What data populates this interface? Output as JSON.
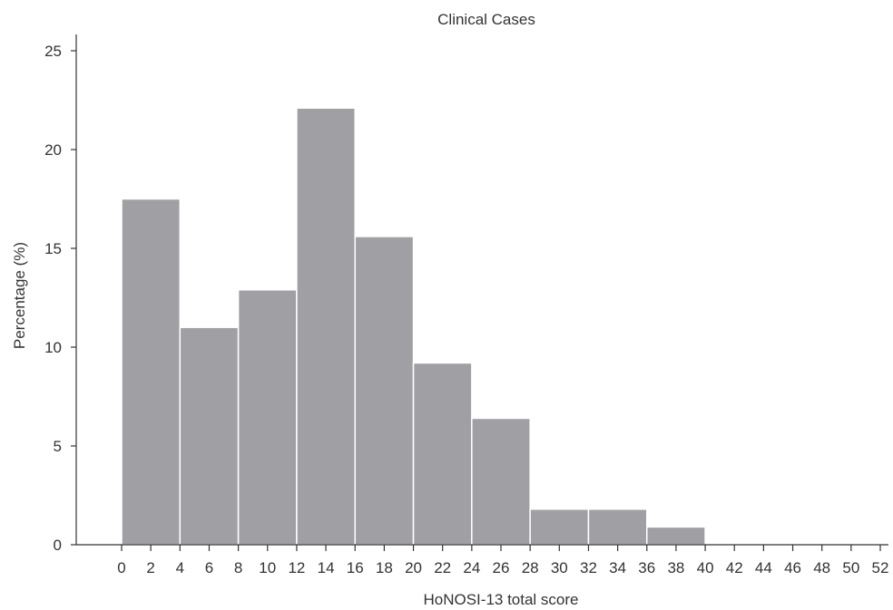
{
  "chart_data": {
    "type": "bar",
    "title": "Clinical Cases",
    "xlabel": "HoNOSI-13 total score",
    "ylabel": "Percentage (%)",
    "x_ticks": [
      "0",
      "2",
      "4",
      "6",
      "8",
      "10",
      "12",
      "14",
      "16",
      "18",
      "20",
      "22",
      "24",
      "26",
      "28",
      "30",
      "32",
      "34",
      "36",
      "38",
      "40",
      "42",
      "44",
      "46",
      "48",
      "50",
      "52"
    ],
    "bins": [
      {
        "start": 0,
        "end": 4,
        "value": 17.5
      },
      {
        "start": 4,
        "end": 8,
        "value": 11.0
      },
      {
        "start": 8,
        "end": 12,
        "value": 12.9
      },
      {
        "start": 12,
        "end": 16,
        "value": 22.1
      },
      {
        "start": 16,
        "end": 20,
        "value": 15.6
      },
      {
        "start": 20,
        "end": 24,
        "value": 9.2
      },
      {
        "start": 24,
        "end": 28,
        "value": 6.4
      },
      {
        "start": 28,
        "end": 32,
        "value": 1.8
      },
      {
        "start": 32,
        "end": 36,
        "value": 1.8
      },
      {
        "start": 36,
        "end": 40,
        "value": 0.9
      },
      {
        "start": 40,
        "end": 44,
        "value": 0
      },
      {
        "start": 44,
        "end": 48,
        "value": 0
      },
      {
        "start": 48,
        "end": 52,
        "value": 0
      }
    ],
    "y_ticks": [
      0,
      5,
      10,
      15,
      20,
      25
    ],
    "ylim": [
      0,
      25
    ],
    "xlim": [
      0,
      52
    ],
    "grid": false,
    "legend": "none",
    "bar_color": "#a0a0a4"
  }
}
